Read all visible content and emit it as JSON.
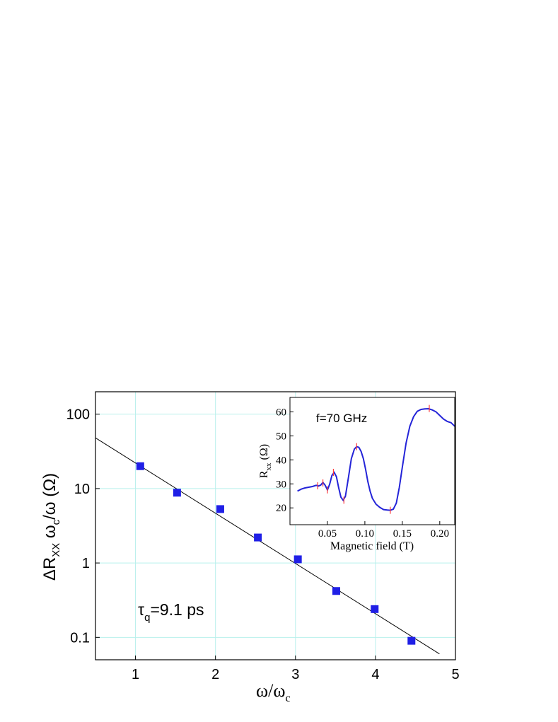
{
  "chart_data": [
    {
      "type": "scatter",
      "title": "",
      "xlabel": "ω/ω",
      "xlabel_subscript": "c",
      "ylabel_parts": [
        "ΔR",
        "XX",
        " ω",
        "c",
        "/ω  (Ω)"
      ],
      "xlim": [
        0.5,
        5
      ],
      "ylim": [
        0.05,
        200
      ],
      "yscale": "log",
      "grid": true,
      "grid_color": "#b8f0ec",
      "x_ticks": [
        1,
        2,
        3,
        4,
        5
      ],
      "y_ticks": [
        0.1,
        1,
        10,
        100
      ],
      "x_tick_labels": [
        "1",
        "2",
        "3",
        "4",
        "5"
      ],
      "y_tick_labels": [
        "0.1",
        "1",
        "10",
        "100"
      ],
      "annotation": {
        "symbol": "τ",
        "sub": "q",
        "text": "=9.1 ps"
      },
      "series": [
        {
          "marker": "square",
          "color": "#1f1fe6",
          "x": [
            1.06,
            1.52,
            2.06,
            2.53,
            3.03,
            3.51,
            3.99,
            4.45
          ],
          "y": [
            20,
            8.8,
            5.3,
            2.2,
            1.12,
            0.42,
            0.24,
            0.09
          ]
        }
      ],
      "fit_line": {
        "color": "#000000",
        "x": [
          0.5,
          4.8
        ],
        "y": [
          48,
          0.06
        ]
      }
    },
    {
      "type": "line",
      "title": "",
      "xlabel": "Magnetic field (T)",
      "ylabel_parts": [
        "R",
        "xx",
        " (Ω)"
      ],
      "xlim": [
        0,
        0.22
      ],
      "ylim": [
        13,
        66
      ],
      "x_ticks": [
        0.05,
        0.1,
        0.15,
        0.2
      ],
      "x_tick_labels": [
        "0.05",
        "0.10",
        "0.15",
        "0.20"
      ],
      "y_ticks": [
        20,
        30,
        40,
        50,
        60
      ],
      "y_tick_labels": [
        "20",
        "30",
        "40",
        "50",
        "60"
      ],
      "annotation": "f=70 GHz",
      "series": [
        {
          "color": "#2424d8",
          "x": [
            0.01,
            0.015,
            0.02,
            0.025,
            0.03,
            0.035,
            0.038,
            0.041,
            0.044,
            0.047,
            0.05,
            0.053,
            0.056,
            0.059,
            0.062,
            0.065,
            0.068,
            0.071,
            0.074,
            0.078,
            0.082,
            0.086,
            0.089,
            0.092,
            0.095,
            0.098,
            0.101,
            0.104,
            0.107,
            0.11,
            0.115,
            0.12,
            0.125,
            0.13,
            0.134,
            0.138,
            0.142,
            0.146,
            0.15,
            0.155,
            0.16,
            0.165,
            0.17,
            0.175,
            0.18,
            0.185,
            0.19,
            0.195,
            0.2,
            0.205,
            0.21,
            0.215,
            0.22
          ],
          "y": [
            27.0,
            27.8,
            28.3,
            28.6,
            28.9,
            29.4,
            29.1,
            29.5,
            30.6,
            29.4,
            27.5,
            29.8,
            33.5,
            34.8,
            33.0,
            28.5,
            24.5,
            23.2,
            24.8,
            32.5,
            40.5,
            44.5,
            45.5,
            45.2,
            43.5,
            40.5,
            36.0,
            31.0,
            27.0,
            24.0,
            21.5,
            20.2,
            19.3,
            19.1,
            19.0,
            19.5,
            22.0,
            28.5,
            37.0,
            47.0,
            54.0,
            58.0,
            60.2,
            61.0,
            61.2,
            61.3,
            60.8,
            60.0,
            58.5,
            57.0,
            56.0,
            55.5,
            54.0
          ]
        }
      ],
      "markers": {
        "color": "#ff3a3a",
        "x": [
          0.037,
          0.044,
          0.05,
          0.058,
          0.072,
          0.089,
          0.134,
          0.186
        ],
        "y": [
          29.2,
          30.4,
          27.5,
          34.8,
          23.2,
          45.5,
          19.0,
          61.4
        ]
      }
    }
  ]
}
